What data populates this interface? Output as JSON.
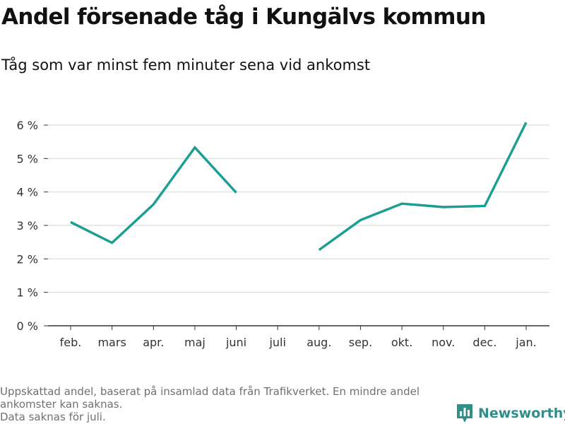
{
  "header": {
    "title": "Andel försenade tåg i Kungälvs kommun",
    "subtitle": "Tåg som var minst fem minuter sena vid ankomst"
  },
  "footer": {
    "note_line1": "Uppskattad andel, baserat på insamlad data från Trafikverket. En mindre andel ankomster kan saknas.",
    "note_line2": "Data saknas för juli.",
    "brand_name": "Newsworthy",
    "brand_icon": "bar-chart-logo-icon"
  },
  "colors": {
    "line": "#1a9e93",
    "grid": "#dcdcdc",
    "axis": "#333333",
    "brand": "#2f8f89"
  },
  "chart_data": {
    "type": "line",
    "title": "Andel försenade tåg i Kungälvs kommun",
    "subtitle": "Tåg som var minst fem minuter sena vid ankomst",
    "categories": [
      "feb.",
      "mars",
      "apr.",
      "maj",
      "juni",
      "juli",
      "aug.",
      "sep.",
      "okt.",
      "nov.",
      "dec.",
      "jan."
    ],
    "series": [
      {
        "values": [
          3.1,
          2.48,
          3.63,
          5.33,
          3.98,
          null,
          2.27,
          3.16,
          3.65,
          3.55,
          3.58,
          6.08
        ]
      }
    ],
    "ylim": [
      0,
      6
    ],
    "yticks": [
      0,
      1,
      2,
      3,
      4,
      5,
      6
    ],
    "ytick_suffix": " %",
    "grid": true,
    "legend": "none"
  }
}
